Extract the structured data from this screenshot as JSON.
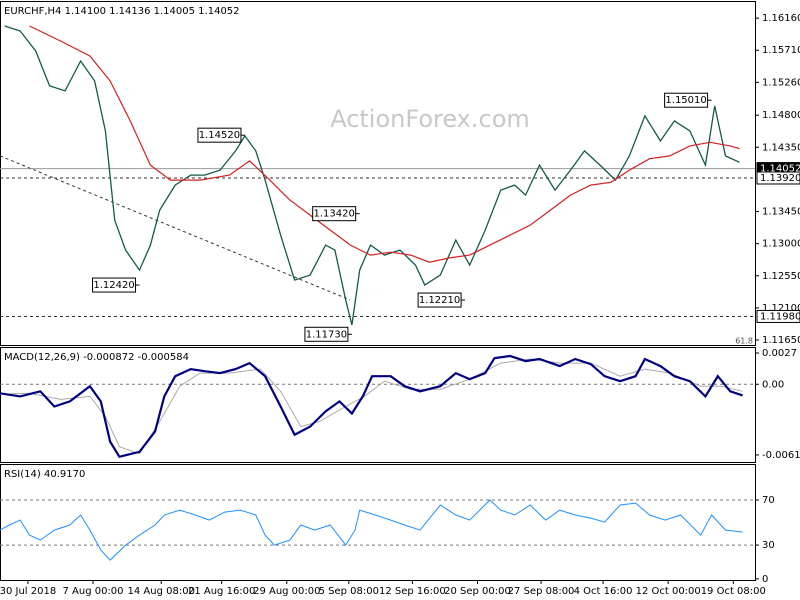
{
  "chart_data": [
    {
      "type": "line",
      "title": "EURCHF,H4  1.14100 1.14136 1.14005 1.14052",
      "watermark": "ActionForex.com",
      "fib_label": "61.8",
      "xlim": [
        0,
        487
      ],
      "ylim": [
        1.1158,
        1.164
      ],
      "yticks": [
        {
          "value": 1.1616,
          "label": "1.16160"
        },
        {
          "value": 1.1571,
          "label": "1.15710"
        },
        {
          "value": 1.1526,
          "label": "1.15260"
        },
        {
          "value": 1.148,
          "label": "1.14800"
        },
        {
          "value": 1.1435,
          "label": "1.14350"
        },
        {
          "value": 1.1345,
          "label": "1.13450"
        },
        {
          "value": 1.13,
          "label": "1.13000"
        },
        {
          "value": 1.1255,
          "label": "1.12550"
        },
        {
          "value": 1.121,
          "label": "1.12100"
        },
        {
          "value": 1.1165,
          "label": "1.11650"
        }
      ],
      "series": [
        {
          "color": "#145a4a",
          "width": 1.3,
          "x": [
            3,
            13,
            23,
            32,
            42,
            52,
            61,
            68,
            74,
            81,
            90,
            97,
            103,
            113,
            123,
            132,
            142,
            152,
            158,
            165,
            171,
            181,
            190,
            200,
            210,
            216,
            223,
            227,
            232,
            239,
            248,
            258,
            268,
            274,
            284,
            294,
            303,
            313,
            323,
            332,
            339,
            348,
            358,
            368,
            377,
            387,
            397,
            406,
            416,
            426,
            435,
            445,
            455,
            461,
            468,
            477
          ],
          "values": [
            1.1605,
            1.1598,
            1.157,
            1.1521,
            1.1514,
            1.1556,
            1.1528,
            1.1458,
            1.1333,
            1.1291,
            1.1263,
            1.1298,
            1.1347,
            1.1382,
            1.1396,
            1.1396,
            1.1403,
            1.143,
            1.1451,
            1.143,
            1.1389,
            1.1312,
            1.1249,
            1.1256,
            1.1298,
            1.1291,
            1.1221,
            1.1186,
            1.1263,
            1.1298,
            1.1284,
            1.1291,
            1.127,
            1.1242,
            1.1256,
            1.1305,
            1.127,
            1.1319,
            1.1375,
            1.1382,
            1.1368,
            1.141,
            1.1375,
            1.1403,
            1.143,
            1.141,
            1.1389,
            1.1423,
            1.1479,
            1.1444,
            1.1472,
            1.1458,
            1.141,
            1.1493,
            1.1423,
            1.1414
          ]
        },
        {
          "color": "#d42020",
          "width": 1.2,
          "x": [
            19,
            39,
            58,
            71,
            84,
            97,
            110,
            129,
            148,
            161,
            174,
            187,
            200,
            213,
            226,
            239,
            252,
            265,
            277,
            290,
            303,
            316,
            329,
            342,
            355,
            368,
            381,
            394,
            406,
            419,
            432,
            445,
            458,
            471,
            477
          ],
          "values": [
            1.1605,
            1.1584,
            1.1563,
            1.1528,
            1.1472,
            1.141,
            1.1389,
            1.1389,
            1.1396,
            1.1416,
            1.1389,
            1.1361,
            1.134,
            1.1319,
            1.1298,
            1.1284,
            1.1288,
            1.1284,
            1.1274,
            1.128,
            1.1284,
            1.1298,
            1.1312,
            1.1326,
            1.1347,
            1.1368,
            1.1382,
            1.1386,
            1.1403,
            1.1419,
            1.1423,
            1.1437,
            1.1442,
            1.1437,
            1.1433
          ]
        }
      ],
      "levels": [
        {
          "value": 1.14052,
          "label": "1.14052",
          "style": "current"
        },
        {
          "value": 1.1392,
          "label": "1.13920",
          "style": "dashed"
        },
        {
          "value": 1.1198,
          "label": "1.11980",
          "style": "dashed"
        }
      ],
      "trendline": {
        "x": [
          0,
          226
        ],
        "values": [
          1.1423,
          1.1221
        ]
      },
      "annotations": [
        {
          "x": 459,
          "value": 1.1501,
          "label": "1.15010"
        },
        {
          "x": 158,
          "value": 1.1452,
          "label": "1.14520"
        },
        {
          "x": 232,
          "value": 1.1342,
          "label": "1.13420"
        },
        {
          "x": 90,
          "value": 1.1242,
          "label": "1.12420"
        },
        {
          "x": 300,
          "value": 1.1221,
          "label": "1.12210"
        },
        {
          "x": 227,
          "value": 1.1173,
          "label": "1.11730"
        }
      ]
    },
    {
      "type": "line",
      "title": "MACD(12,26,9) -0.000872 -0.000584",
      "xlim": [
        0,
        487
      ],
      "ylim": [
        -0.00672,
        0.00322
      ],
      "yticks": [
        0.0027,
        {
          "value": 0,
          "label": "0.00"
        },
        -0.00611
      ],
      "grid_ticks": [
        false,
        true,
        false
      ],
      "series": [
        {
          "color": "#aaaaaa",
          "width": 1,
          "x": [
            0,
            19,
            39,
            58,
            68,
            77,
            90,
            103,
            116,
            129,
            148,
            168,
            181,
            194,
            206,
            223,
            235,
            248,
            265,
            284,
            303,
            323,
            342,
            361,
            381,
            400,
            416,
            432,
            452,
            465,
            479
          ],
          "values": [
            -0.00087,
            -0.00078,
            -0.00131,
            -0.00105,
            -0.00279,
            -0.0054,
            -0.00601,
            -0.00322,
            -0.00017,
            0.00096,
            0.00096,
            0.00131,
            -0.00061,
            -0.00366,
            -0.00322,
            -0.00192,
            -0.00105,
            0.00026,
            -0.00044,
            -0.00044,
            0.00044,
            0.00183,
            0.00218,
            0.00183,
            0.00183,
            0.0007,
            0.00131,
            0.00096,
            -0.00017,
            -0.00017,
            -0.00061
          ]
        },
        {
          "color": "#000080",
          "width": 2.2,
          "x": [
            0,
            13,
            26,
            35,
            45,
            58,
            65,
            71,
            77,
            90,
            100,
            106,
            113,
            123,
            132,
            142,
            152,
            161,
            171,
            181,
            190,
            200,
            210,
            219,
            227,
            234,
            240,
            252,
            261,
            271,
            284,
            294,
            303,
            313,
            319,
            329,
            339,
            348,
            361,
            371,
            381,
            390,
            400,
            410,
            416,
            426,
            435,
            445,
            455,
            463,
            471,
            479
          ],
          "values": [
            -0.00078,
            -0.00105,
            -0.00061,
            -0.00192,
            -0.00148,
            -0.00017,
            -0.00148,
            -0.00496,
            -0.00627,
            -0.00584,
            -0.00409,
            -0.00105,
            0.0007,
            0.00131,
            0.00113,
            0.00096,
            0.00131,
            0.00183,
            0.0007,
            -0.00192,
            -0.00436,
            -0.00366,
            -0.00235,
            -0.00148,
            -0.00253,
            -0.00105,
            0.0007,
            0.0007,
            -0.00017,
            -0.00061,
            -0.00017,
            0.00096,
            0.00044,
            0.00096,
            0.00226,
            0.00244,
            0.002,
            0.00218,
            0.00157,
            0.00218,
            0.00174,
            0.0007,
            0.00026,
            0.0007,
            0.00218,
            0.00157,
            0.0007,
            0.00026,
            -0.00105,
            0.0007,
            -0.00061,
            -0.00096
          ]
        }
      ]
    },
    {
      "type": "line",
      "title": "RSI(14) 40.9170",
      "xlim": [
        0,
        487
      ],
      "ylim": [
        -1,
        102
      ],
      "yticks": [
        70,
        30,
        0
      ],
      "grid_ticks": [
        true,
        true,
        false
      ],
      "xticks": [
        {
          "value": 18,
          "label": "30 Jul 2018"
        },
        {
          "value": 60,
          "label": "7 Aug 00:00"
        },
        {
          "value": 104,
          "label": "14 Aug 08:00"
        },
        {
          "value": 143,
          "label": "21 Aug 16:00"
        },
        {
          "value": 185,
          "label": "29 Aug 00:00"
        },
        {
          "value": 225,
          "label": "5 Sep 08:00"
        },
        {
          "value": 266,
          "label": "12 Sep 16:00"
        },
        {
          "value": 308,
          "label": "20 Sep 00:00"
        },
        {
          "value": 349,
          "label": "27 Sep 08:00"
        },
        {
          "value": 389,
          "label": "4 Oct 16:00"
        },
        {
          "value": 431,
          "label": "12 Oct 00:00"
        },
        {
          "value": 473,
          "label": "19 Oct 08:00"
        }
      ],
      "series": [
        {
          "color": "#1e90ff",
          "width": 1,
          "x": [
            0,
            6,
            13,
            19,
            26,
            35,
            45,
            52,
            58,
            65,
            71,
            81,
            90,
            100,
            106,
            116,
            126,
            135,
            145,
            155,
            165,
            171,
            177,
            187,
            194,
            203,
            213,
            223,
            229,
            232,
            242,
            252,
            261,
            271,
            284,
            294,
            303,
            316,
            323,
            332,
            342,
            352,
            361,
            371,
            381,
            390,
            400,
            410,
            419,
            429,
            439,
            452,
            459,
            468,
            479
          ],
          "values": [
            43.3,
            47.8,
            52.2,
            38.9,
            34.4,
            43.3,
            47.8,
            56.7,
            43.3,
            25.6,
            16.7,
            30.0,
            38.9,
            47.8,
            56.7,
            61.1,
            56.7,
            52.2,
            59.3,
            61.1,
            56.7,
            38.9,
            30.0,
            34.4,
            47.8,
            43.3,
            47.8,
            30.0,
            43.3,
            61.1,
            56.7,
            52.2,
            47.8,
            43.3,
            65.6,
            56.7,
            52.2,
            70.0,
            61.1,
            56.7,
            65.6,
            52.2,
            61.1,
            56.7,
            54.0,
            50.4,
            65.6,
            67.3,
            56.7,
            52.2,
            56.7,
            38.9,
            56.7,
            43.3,
            41.6
          ]
        }
      ]
    }
  ]
}
